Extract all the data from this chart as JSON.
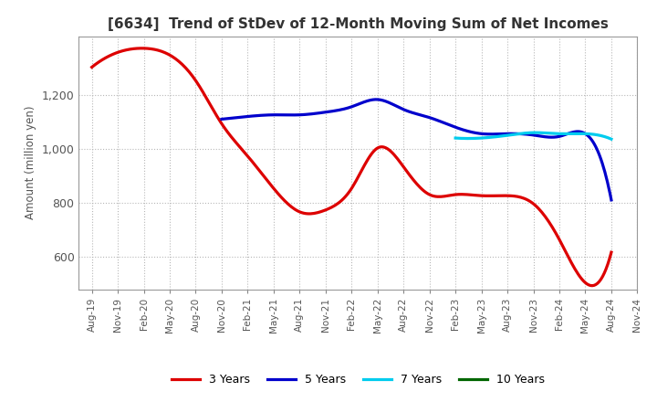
{
  "title": "[6634]  Trend of StDev of 12-Month Moving Sum of Net Incomes",
  "ylabel": "Amount (million yen)",
  "background_color": "#ffffff",
  "grid_color": "#b0b0b0",
  "ylim": [
    480,
    1420
  ],
  "yticks": [
    600,
    800,
    1000,
    1200
  ],
  "legend_labels": [
    "3 Years",
    "5 Years",
    "7 Years",
    "10 Years"
  ],
  "legend_colors": [
    "#dd0000",
    "#0000cc",
    "#00ccee",
    "#006600"
  ],
  "x_labels": [
    "Aug-19",
    "Nov-19",
    "Feb-20",
    "May-20",
    "Aug-20",
    "Nov-20",
    "Feb-21",
    "May-21",
    "Aug-21",
    "Nov-21",
    "Feb-22",
    "May-22",
    "Aug-22",
    "Nov-22",
    "Feb-23",
    "May-23",
    "Aug-23",
    "Nov-23",
    "Feb-24",
    "May-24",
    "Aug-24",
    "Nov-24"
  ],
  "series_3yr_x": [
    0,
    1,
    2,
    3,
    4,
    5,
    6,
    7,
    8,
    9,
    10,
    11,
    12,
    13,
    14,
    15,
    16,
    17,
    18,
    19,
    20
  ],
  "series_3yr_y": [
    1305,
    1360,
    1375,
    1350,
    1255,
    1095,
    975,
    855,
    768,
    775,
    855,
    1005,
    935,
    832,
    832,
    828,
    828,
    798,
    665,
    505,
    618
  ],
  "series_5yr_x": [
    5,
    6,
    7,
    8,
    9,
    10,
    11,
    12,
    13,
    14,
    15,
    16,
    17,
    18,
    19,
    20
  ],
  "series_5yr_y": [
    1112,
    1122,
    1128,
    1128,
    1138,
    1158,
    1185,
    1148,
    1118,
    1082,
    1058,
    1058,
    1053,
    1048,
    1058,
    812
  ],
  "series_7yr_x": [
    14,
    15,
    16,
    17,
    18,
    19,
    20
  ],
  "series_7yr_y": [
    1042,
    1042,
    1052,
    1062,
    1058,
    1058,
    1038
  ],
  "series_10yr_x": [],
  "series_10yr_y": []
}
